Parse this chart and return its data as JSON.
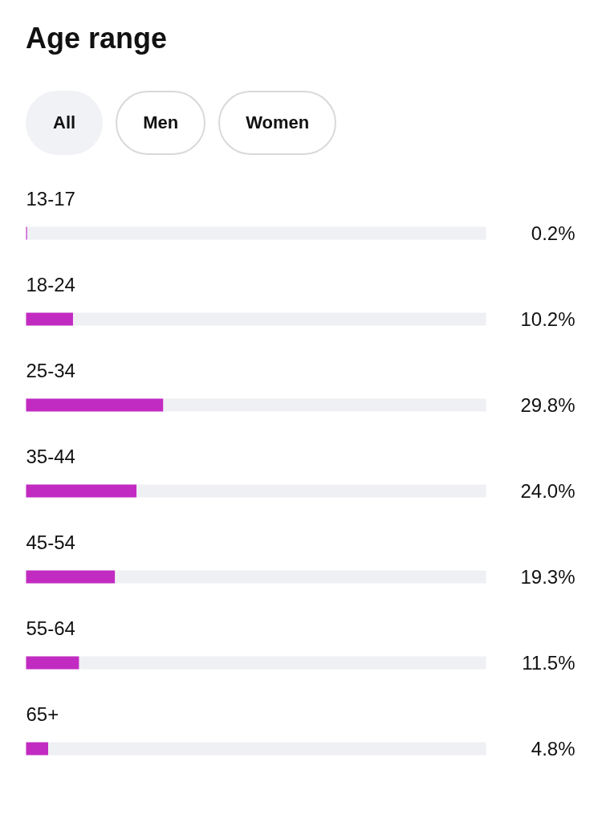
{
  "chart_data": {
    "type": "bar",
    "orientation": "horizontal",
    "title": "Age range",
    "annotations": [
      "All",
      "Men",
      "Women"
    ],
    "categories": [
      "13-17",
      "18-24",
      "25-34",
      "35-44",
      "45-54",
      "55-64",
      "65+"
    ],
    "values": [
      0.2,
      10.2,
      29.8,
      24.0,
      19.3,
      11.5,
      4.8
    ],
    "value_labels": [
      "0.2%",
      "10.2%",
      "29.8%",
      "24.0%",
      "19.3%",
      "11.5%",
      "4.8%"
    ],
    "color": "#c22bc2",
    "xlim": [
      0,
      100
    ],
    "tick_labels": false,
    "grid": false
  }
}
